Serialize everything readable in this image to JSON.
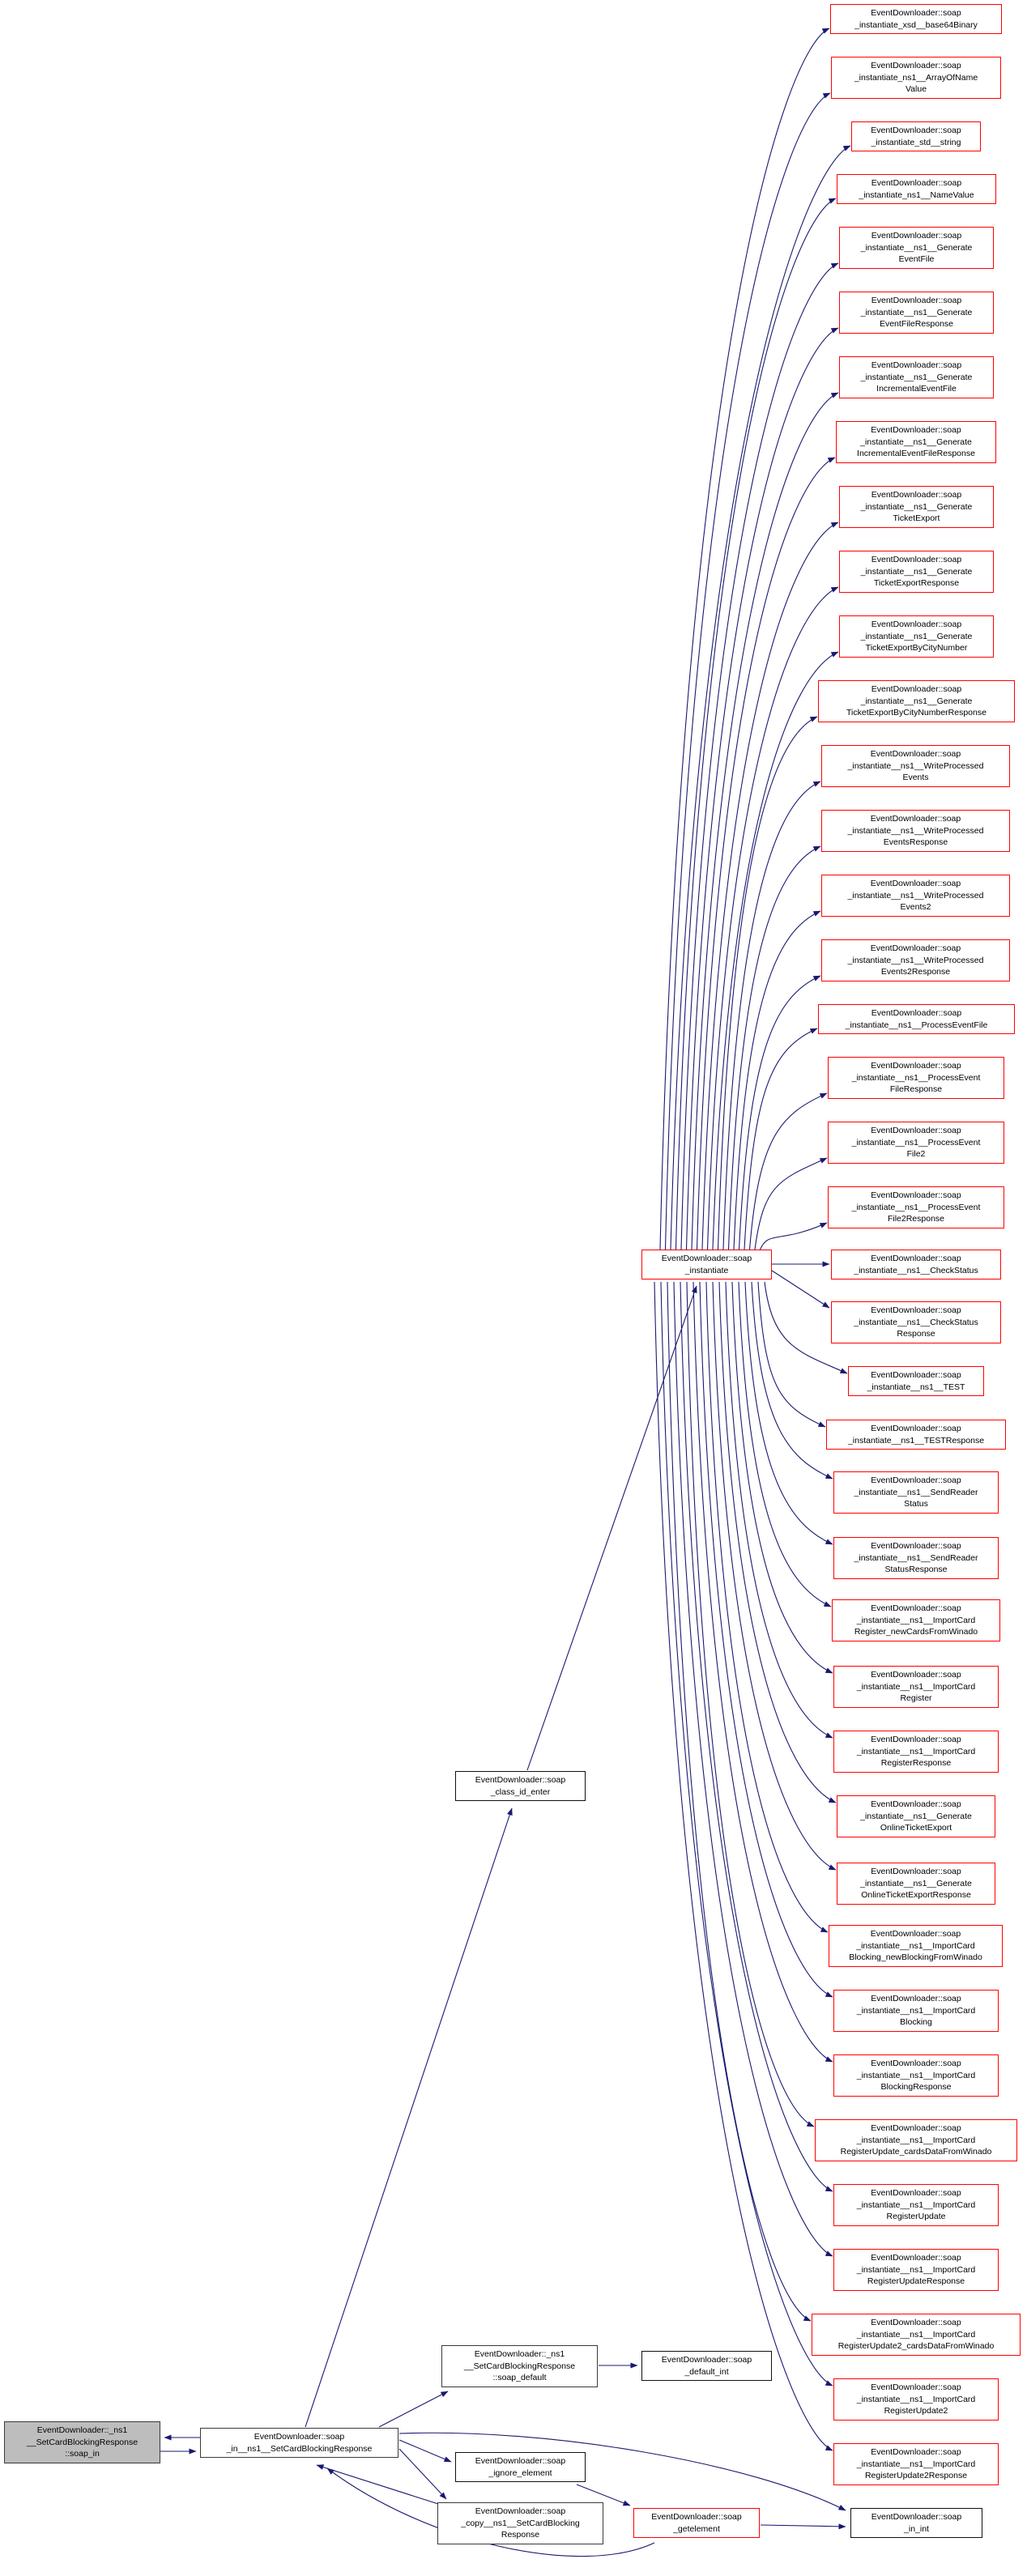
{
  "diagram": {
    "kind": "doxygen-call-graph",
    "colors": {
      "edge": "#191970",
      "highlight_border": "#ff0000",
      "node_border": "#101010",
      "current_node_fill": "#bdbdbd",
      "node_fill": "#ffffff"
    },
    "current_node": {
      "label": "EventDownloader::_ns1\n__SetCardBlockingResponse\n::soap_in"
    },
    "nodes": {
      "soap_in_resp": {
        "label": "EventDownloader::soap\n_in__ns1__SetCardBlockingResponse"
      },
      "class_id_enter": {
        "label": "EventDownloader::soap\n_class_id_enter"
      },
      "instantiate": {
        "label": "EventDownloader::soap\n_instantiate"
      },
      "soap_default": {
        "label": "EventDownloader::_ns1\n__SetCardBlockingResponse\n::soap_default"
      },
      "default_int": {
        "label": "EventDownloader::soap\n_default_int"
      },
      "ignore_element": {
        "label": "EventDownloader::soap\n_ignore_element"
      },
      "copy_resp": {
        "label": "EventDownloader::soap\n_copy__ns1__SetCardBlocking\nResponse"
      },
      "getelement": {
        "label": "EventDownloader::soap\n_getelement"
      },
      "in_int": {
        "label": "EventDownloader::soap\n_in_int"
      }
    },
    "instantiate_callees": [
      {
        "label": "EventDownloader::soap\n_instantiate_xsd__base64Binary"
      },
      {
        "label": "EventDownloader::soap\n_instantiate_ns1__ArrayOfName\nValue"
      },
      {
        "label": "EventDownloader::soap\n_instantiate_std__string"
      },
      {
        "label": "EventDownloader::soap\n_instantiate_ns1__NameValue"
      },
      {
        "label": "EventDownloader::soap\n_instantiate__ns1__Generate\nEventFile"
      },
      {
        "label": "EventDownloader::soap\n_instantiate__ns1__Generate\nEventFileResponse"
      },
      {
        "label": "EventDownloader::soap\n_instantiate__ns1__Generate\nIncrementalEventFile"
      },
      {
        "label": "EventDownloader::soap\n_instantiate__ns1__Generate\nIncrementalEventFileResponse"
      },
      {
        "label": "EventDownloader::soap\n_instantiate__ns1__Generate\nTicketExport"
      },
      {
        "label": "EventDownloader::soap\n_instantiate__ns1__Generate\nTicketExportResponse"
      },
      {
        "label": "EventDownloader::soap\n_instantiate__ns1__Generate\nTicketExportByCityNumber"
      },
      {
        "label": "EventDownloader::soap\n_instantiate__ns1__Generate\nTicketExportByCityNumberResponse"
      },
      {
        "label": "EventDownloader::soap\n_instantiate__ns1__WriteProcessed\nEvents"
      },
      {
        "label": "EventDownloader::soap\n_instantiate__ns1__WriteProcessed\nEventsResponse"
      },
      {
        "label": "EventDownloader::soap\n_instantiate__ns1__WriteProcessed\nEvents2"
      },
      {
        "label": "EventDownloader::soap\n_instantiate__ns1__WriteProcessed\nEvents2Response"
      },
      {
        "label": "EventDownloader::soap\n_instantiate__ns1__ProcessEventFile"
      },
      {
        "label": "EventDownloader::soap\n_instantiate__ns1__ProcessEvent\nFileResponse"
      },
      {
        "label": "EventDownloader::soap\n_instantiate__ns1__ProcessEvent\nFile2"
      },
      {
        "label": "EventDownloader::soap\n_instantiate__ns1__ProcessEvent\nFile2Response"
      },
      {
        "label": "EventDownloader::soap\n_instantiate__ns1__CheckStatus"
      },
      {
        "label": "EventDownloader::soap\n_instantiate__ns1__CheckStatus\nResponse"
      },
      {
        "label": "EventDownloader::soap\n_instantiate__ns1__TEST"
      },
      {
        "label": "EventDownloader::soap\n_instantiate__ns1__TESTResponse"
      },
      {
        "label": "EventDownloader::soap\n_instantiate__ns1__SendReader\nStatus"
      },
      {
        "label": "EventDownloader::soap\n_instantiate__ns1__SendReader\nStatusResponse"
      },
      {
        "label": "EventDownloader::soap\n_instantiate__ns1__ImportCard\nRegister_newCardsFromWinado"
      },
      {
        "label": "EventDownloader::soap\n_instantiate__ns1__ImportCard\nRegister"
      },
      {
        "label": "EventDownloader::soap\n_instantiate__ns1__ImportCard\nRegisterResponse"
      },
      {
        "label": "EventDownloader::soap\n_instantiate__ns1__Generate\nOnlineTicketExport"
      },
      {
        "label": "EventDownloader::soap\n_instantiate__ns1__Generate\nOnlineTicketExportResponse"
      },
      {
        "label": "EventDownloader::soap\n_instantiate__ns1__ImportCard\nBlocking_newBlockingFromWinado"
      },
      {
        "label": "EventDownloader::soap\n_instantiate__ns1__ImportCard\nBlocking"
      },
      {
        "label": "EventDownloader::soap\n_instantiate__ns1__ImportCard\nBlockingResponse"
      },
      {
        "label": "EventDownloader::soap\n_instantiate__ns1__ImportCard\nRegisterUpdate_cardsDataFromWinado"
      },
      {
        "label": "EventDownloader::soap\n_instantiate__ns1__ImportCard\nRegisterUpdate"
      },
      {
        "label": "EventDownloader::soap\n_instantiate__ns1__ImportCard\nRegisterUpdateResponse"
      },
      {
        "label": "EventDownloader::soap\n_instantiate__ns1__ImportCard\nRegisterUpdate2_cardsDataFromWinado"
      },
      {
        "label": "EventDownloader::soap\n_instantiate__ns1__ImportCard\nRegisterUpdate2"
      },
      {
        "label": "EventDownloader::soap\n_instantiate__ns1__ImportCard\nRegisterUpdate2Response"
      }
    ]
  }
}
